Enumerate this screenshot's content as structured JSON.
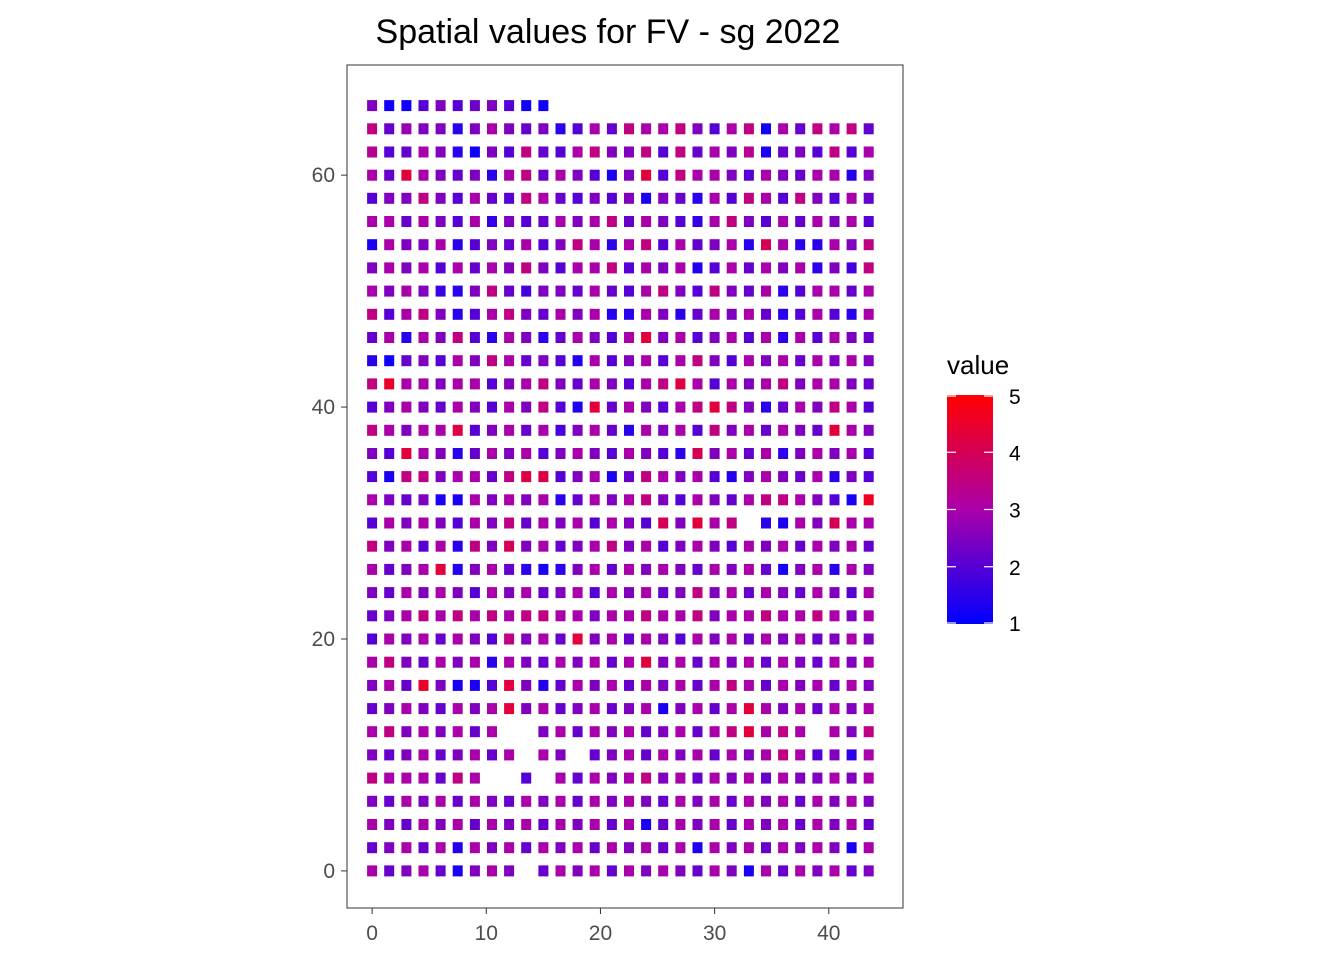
{
  "chart_data": {
    "type": "heatmap",
    "title": "Spatial values for FV - sg 2022",
    "xlabel": "",
    "ylabel": "",
    "xlim": [
      -2.2,
      46.5
    ],
    "ylim": [
      -3.2,
      69.5
    ],
    "x_ticks": [
      0,
      10,
      20,
      30,
      40
    ],
    "y_ticks": [
      0,
      20,
      40,
      60
    ],
    "grid": false,
    "legend": {
      "title": "value",
      "position": "right",
      "range": [
        1,
        5
      ],
      "ticks": [
        1,
        2,
        3,
        4,
        5
      ],
      "color_low": "#0000ff",
      "color_high": "#ff0000"
    },
    "x_positions": [
      0,
      1.5,
      3,
      4.5,
      6,
      7.5,
      9,
      10.5,
      12,
      13.5,
      15,
      16.5,
      18,
      19.5,
      21,
      22.5,
      24,
      25.5,
      27,
      28.5,
      30,
      31.5,
      33,
      34.5,
      36,
      37.5,
      39,
      40.5,
      42,
      43.5
    ],
    "y_positions": [
      0,
      2,
      4,
      6,
      8,
      10,
      12,
      14,
      16,
      18,
      20,
      22,
      24,
      26,
      28,
      30,
      32,
      34,
      36,
      38,
      40,
      42,
      44,
      46,
      48,
      50,
      52,
      54,
      56,
      58,
      60,
      62,
      64,
      66
    ],
    "note_rows": "rows listed from top (y=66) to bottom (y=0); 0 means no tile",
    "rows": [
      [
        2.5,
        1.2,
        1.2,
        2.0,
        2.5,
        2.0,
        2.3,
        2.5,
        2.0,
        1.2,
        1.2,
        0,
        0,
        0,
        0,
        0,
        0,
        0,
        0,
        0,
        0,
        0,
        0,
        0,
        0,
        0,
        0,
        0,
        0,
        0
      ],
      [
        3.5,
        2.2,
        2.8,
        2.5,
        2.5,
        1.5,
        2.5,
        3.0,
        2.5,
        2.2,
        2.5,
        1.5,
        2.0,
        3.0,
        2.2,
        3.5,
        3.0,
        3.0,
        3.5,
        2.5,
        2.0,
        3.0,
        3.5,
        1.2,
        3.0,
        2.2,
        3.5,
        3.0,
        3.5,
        2.2
      ],
      [
        3.3,
        2.0,
        2.2,
        3.0,
        2.5,
        1.5,
        1.2,
        2.5,
        2.0,
        3.5,
        2.2,
        2.0,
        3.0,
        3.5,
        2.5,
        2.5,
        3.5,
        2.0,
        3.5,
        2.2,
        3.0,
        2.5,
        3.3,
        1.3,
        2.2,
        2.5,
        2.0,
        3.5,
        2.0,
        3.0
      ],
      [
        3.0,
        2.2,
        4.3,
        3.0,
        2.5,
        2.2,
        2.5,
        1.5,
        3.0,
        3.5,
        2.2,
        3.0,
        2.5,
        2.0,
        1.3,
        2.5,
        4.3,
        2.0,
        3.5,
        3.0,
        3.0,
        2.5,
        2.0,
        3.0,
        2.5,
        2.2,
        3.0,
        3.0,
        1.4,
        2.5
      ],
      [
        2.0,
        2.5,
        2.5,
        3.5,
        2.5,
        2.0,
        3.0,
        2.2,
        2.0,
        3.5,
        3.0,
        2.2,
        2.0,
        2.5,
        2.0,
        2.5,
        1.3,
        2.5,
        2.2,
        1.5,
        3.0,
        2.0,
        3.5,
        3.0,
        2.0,
        3.5,
        2.5,
        2.0,
        3.0,
        2.2
      ],
      [
        3.0,
        3.0,
        2.2,
        3.0,
        2.5,
        2.0,
        3.0,
        1.6,
        2.5,
        2.0,
        2.2,
        3.0,
        2.5,
        3.0,
        3.5,
        2.2,
        3.0,
        2.5,
        2.0,
        1.6,
        3.0,
        3.5,
        2.5,
        2.0,
        3.0,
        2.2,
        3.0,
        2.5,
        3.0,
        2.0
      ],
      [
        1.3,
        3.0,
        2.5,
        2.5,
        3.0,
        1.5,
        2.0,
        2.5,
        2.2,
        3.0,
        2.0,
        2.5,
        3.5,
        3.0,
        1.5,
        3.0,
        3.5,
        2.0,
        3.0,
        2.2,
        2.5,
        3.0,
        1.5,
        4.0,
        3.0,
        1.5,
        1.5,
        3.0,
        2.5,
        3.5
      ],
      [
        2.5,
        3.0,
        2.5,
        3.0,
        2.0,
        3.0,
        2.2,
        3.0,
        2.5,
        3.5,
        2.5,
        2.0,
        3.0,
        3.0,
        3.5,
        2.0,
        3.0,
        2.5,
        3.0,
        1.4,
        2.0,
        3.0,
        2.2,
        3.0,
        2.5,
        3.0,
        1.5,
        2.5,
        1.8,
        3.5
      ],
      [
        3.0,
        2.5,
        3.0,
        2.5,
        1.7,
        1.5,
        2.5,
        3.5,
        2.2,
        1.8,
        2.5,
        2.5,
        2.2,
        3.0,
        2.2,
        2.0,
        3.0,
        3.5,
        2.5,
        2.0,
        3.5,
        2.5,
        2.2,
        3.0,
        1.5,
        2.0,
        3.0,
        3.0,
        2.2,
        3.0
      ],
      [
        3.5,
        2.0,
        3.0,
        3.5,
        2.5,
        1.5,
        2.0,
        3.0,
        3.5,
        2.5,
        2.2,
        3.0,
        2.5,
        3.0,
        1.4,
        1.5,
        3.0,
        2.5,
        1.5,
        2.2,
        3.0,
        2.5,
        3.0,
        2.2,
        1.5,
        2.0,
        3.0,
        2.0,
        1.5,
        3.0
      ],
      [
        2.2,
        3.0,
        1.5,
        3.0,
        2.5,
        3.5,
        2.0,
        1.5,
        3.0,
        2.5,
        1.5,
        2.2,
        3.0,
        2.5,
        2.0,
        3.0,
        4.3,
        2.5,
        3.0,
        2.0,
        2.5,
        3.0,
        2.0,
        3.0,
        1.5,
        3.0,
        2.0,
        3.0,
        2.5,
        2.2
      ],
      [
        1.5,
        1.2,
        2.2,
        2.5,
        2.0,
        3.0,
        2.5,
        3.5,
        3.0,
        2.2,
        2.5,
        2.0,
        1.4,
        3.0,
        2.0,
        2.5,
        3.0,
        2.0,
        3.0,
        3.5,
        2.5,
        2.0,
        3.0,
        2.5,
        3.0,
        2.2,
        3.0,
        2.5,
        3.0,
        2.5
      ],
      [
        3.5,
        4.5,
        3.0,
        3.0,
        2.5,
        3.0,
        3.0,
        2.0,
        2.5,
        3.0,
        3.5,
        2.5,
        2.2,
        3.0,
        2.5,
        2.0,
        3.0,
        3.5,
        4.2,
        3.0,
        2.0,
        3.0,
        2.5,
        3.0,
        3.5,
        2.5,
        3.0,
        3.0,
        2.5,
        2.2
      ],
      [
        2.0,
        2.5,
        3.0,
        2.5,
        2.2,
        3.0,
        2.5,
        2.0,
        3.0,
        2.5,
        3.5,
        2.0,
        1.4,
        4.3,
        2.2,
        3.0,
        2.5,
        2.0,
        3.0,
        3.5,
        4.3,
        3.5,
        2.5,
        1.5,
        2.2,
        3.0,
        2.5,
        3.5,
        3.0,
        2.0
      ],
      [
        3.5,
        3.0,
        2.5,
        3.0,
        3.0,
        4.2,
        2.0,
        2.5,
        3.0,
        2.2,
        3.0,
        1.8,
        2.5,
        3.0,
        2.2,
        1.5,
        3.0,
        2.5,
        3.0,
        2.0,
        3.5,
        2.5,
        3.0,
        2.2,
        3.0,
        2.5,
        2.2,
        4.3,
        3.0,
        2.5
      ],
      [
        2.5,
        2.0,
        4.3,
        3.0,
        2.5,
        1.5,
        2.2,
        3.0,
        2.5,
        3.0,
        2.0,
        2.5,
        3.0,
        2.5,
        2.0,
        3.0,
        2.5,
        2.0,
        1.5,
        4.0,
        2.5,
        3.0,
        2.2,
        3.0,
        1.5,
        2.5,
        3.0,
        2.5,
        3.0,
        2.0
      ],
      [
        2.0,
        1.3,
        3.5,
        3.5,
        2.5,
        3.0,
        3.0,
        2.2,
        3.5,
        4.2,
        4.2,
        2.0,
        2.5,
        3.0,
        1.3,
        2.2,
        3.5,
        3.0,
        2.5,
        3.0,
        2.0,
        1.4,
        2.5,
        3.0,
        2.5,
        2.2,
        3.0,
        1.5,
        2.5,
        2.0
      ],
      [
        3.0,
        2.5,
        2.2,
        2.5,
        1.3,
        1.3,
        3.0,
        2.5,
        3.0,
        2.5,
        3.0,
        1.5,
        2.2,
        3.0,
        2.5,
        3.0,
        3.5,
        2.5,
        2.0,
        3.0,
        2.5,
        2.2,
        3.0,
        3.5,
        3.5,
        3.0,
        2.5,
        2.0,
        1.3,
        4.6
      ],
      [
        2.0,
        3.0,
        2.5,
        3.0,
        2.5,
        2.0,
        3.0,
        2.5,
        3.5,
        2.2,
        3.0,
        2.5,
        3.0,
        2.0,
        3.0,
        2.5,
        2.0,
        4.0,
        2.5,
        4.3,
        3.0,
        3.5,
        0,
        1.5,
        1.3,
        3.0,
        2.5,
        4.0,
        3.0,
        3.0
      ],
      [
        3.5,
        2.5,
        3.0,
        2.0,
        3.0,
        1.5,
        3.5,
        2.5,
        4.0,
        2.5,
        3.0,
        2.2,
        2.5,
        3.0,
        3.5,
        2.5,
        3.0,
        2.0,
        2.5,
        3.0,
        2.5,
        2.0,
        3.0,
        2.5,
        3.0,
        2.2,
        3.0,
        2.5,
        3.0,
        2.2
      ],
      [
        3.0,
        2.2,
        2.5,
        3.0,
        4.3,
        1.4,
        2.5,
        3.0,
        2.2,
        1.5,
        1.3,
        1.5,
        2.5,
        3.0,
        2.2,
        3.0,
        2.5,
        3.0,
        2.5,
        2.2,
        3.0,
        2.5,
        3.0,
        2.2,
        1.3,
        2.5,
        3.0,
        1.5,
        3.0,
        2.5
      ],
      [
        2.5,
        2.2,
        3.0,
        2.5,
        3.0,
        2.5,
        2.0,
        3.0,
        2.5,
        3.0,
        2.2,
        2.5,
        3.0,
        2.0,
        3.0,
        2.5,
        3.0,
        2.2,
        2.5,
        3.5,
        2.5,
        3.0,
        2.2,
        3.0,
        2.5,
        2.2,
        3.0,
        2.5,
        2.0,
        3.0
      ],
      [
        2.2,
        2.5,
        3.0,
        3.5,
        3.0,
        3.5,
        3.0,
        3.5,
        3.0,
        3.5,
        3.5,
        3.0,
        3.0,
        2.5,
        3.0,
        3.0,
        3.5,
        3.0,
        3.0,
        3.5,
        2.5,
        3.0,
        3.0,
        3.5,
        3.0,
        3.0,
        3.5,
        3.0,
        2.5,
        3.0
      ],
      [
        2.0,
        3.0,
        2.5,
        3.0,
        2.2,
        3.0,
        2.5,
        2.0,
        3.5,
        2.5,
        3.0,
        2.2,
        4.3,
        2.5,
        3.0,
        2.2,
        3.0,
        2.5,
        2.0,
        3.0,
        2.5,
        3.0,
        2.2,
        3.0,
        2.5,
        3.0,
        2.2,
        2.5,
        3.0,
        2.5
      ],
      [
        3.0,
        3.5,
        2.5,
        2.2,
        3.0,
        2.5,
        3.0,
        1.5,
        3.0,
        2.5,
        2.2,
        3.0,
        2.5,
        3.0,
        2.2,
        3.0,
        4.3,
        2.5,
        3.0,
        2.2,
        3.0,
        2.5,
        3.0,
        2.2,
        3.0,
        2.5,
        2.2,
        3.0,
        2.5,
        3.0
      ],
      [
        2.5,
        3.0,
        2.2,
        4.5,
        2.5,
        1.3,
        1.3,
        2.0,
        4.3,
        2.5,
        1.4,
        2.2,
        3.0,
        2.5,
        3.0,
        2.2,
        3.0,
        2.5,
        3.0,
        2.2,
        3.0,
        3.5,
        3.0,
        2.2,
        3.0,
        2.5,
        3.0,
        2.2,
        3.0,
        2.5
      ],
      [
        2.2,
        2.5,
        3.0,
        2.5,
        2.2,
        3.0,
        2.5,
        3.0,
        4.3,
        2.5,
        3.0,
        2.2,
        2.5,
        3.0,
        2.2,
        2.5,
        3.0,
        1.3,
        2.5,
        3.0,
        2.2,
        3.0,
        4.3,
        3.0,
        2.5,
        3.0,
        2.2,
        3.0,
        2.5,
        3.0
      ],
      [
        3.0,
        3.5,
        2.5,
        3.0,
        2.5,
        3.0,
        2.2,
        3.0,
        0,
        0,
        2.5,
        3.0,
        2.2,
        3.0,
        2.5,
        3.0,
        2.2,
        2.5,
        3.0,
        2.2,
        3.0,
        3.5,
        4.3,
        3.0,
        3.5,
        3.0,
        0,
        3.0,
        2.5,
        3.5
      ],
      [
        2.5,
        2.2,
        2.5,
        3.0,
        2.2,
        2.5,
        3.0,
        2.2,
        3.0,
        0,
        3.0,
        2.5,
        0,
        2.2,
        2.5,
        3.0,
        2.2,
        3.0,
        2.5,
        3.0,
        2.2,
        3.0,
        2.5,
        3.0,
        3.5,
        3.0,
        2.0,
        2.5,
        1.5,
        3.0
      ],
      [
        3.5,
        3.0,
        3.0,
        3.0,
        2.2,
        3.5,
        3.0,
        0,
        0,
        2.0,
        0,
        3.0,
        2.2,
        3.0,
        2.5,
        3.0,
        3.5,
        2.5,
        3.0,
        2.2,
        3.0,
        2.5,
        3.0,
        2.2,
        3.0,
        2.5,
        2.5,
        3.0,
        2.5,
        3.0
      ],
      [
        2.5,
        2.2,
        3.0,
        2.5,
        3.0,
        2.2,
        3.0,
        2.5,
        2.2,
        3.0,
        2.5,
        3.0,
        2.2,
        3.0,
        2.5,
        3.0,
        2.5,
        2.2,
        3.0,
        2.5,
        3.0,
        2.2,
        3.0,
        2.5,
        3.0,
        2.2,
        3.0,
        2.5,
        3.0,
        2.5
      ],
      [
        3.0,
        2.5,
        2.2,
        3.0,
        2.5,
        3.0,
        2.2,
        3.0,
        2.5,
        3.0,
        2.2,
        3.0,
        2.5,
        3.0,
        2.2,
        3.0,
        1.3,
        2.2,
        3.0,
        2.5,
        3.0,
        2.2,
        3.0,
        2.5,
        3.0,
        2.2,
        3.0,
        2.5,
        3.0,
        2.2
      ],
      [
        2.2,
        2.5,
        3.0,
        2.2,
        3.0,
        1.4,
        3.0,
        2.5,
        3.0,
        2.2,
        3.0,
        2.5,
        3.0,
        2.2,
        3.0,
        2.5,
        3.0,
        2.2,
        3.0,
        1.3,
        3.0,
        2.5,
        3.0,
        2.2,
        3.0,
        2.5,
        3.0,
        2.5,
        1.3,
        3.0
      ],
      [
        3.0,
        2.2,
        2.5,
        3.0,
        2.2,
        1.3,
        2.5,
        3.0,
        2.5,
        0,
        2.2,
        3.0,
        2.5,
        3.0,
        2.2,
        3.0,
        2.5,
        3.0,
        2.5,
        2.2,
        3.0,
        2.5,
        1.3,
        3.0,
        2.2,
        3.0,
        2.5,
        3.0,
        2.2,
        2.5
      ]
    ]
  }
}
